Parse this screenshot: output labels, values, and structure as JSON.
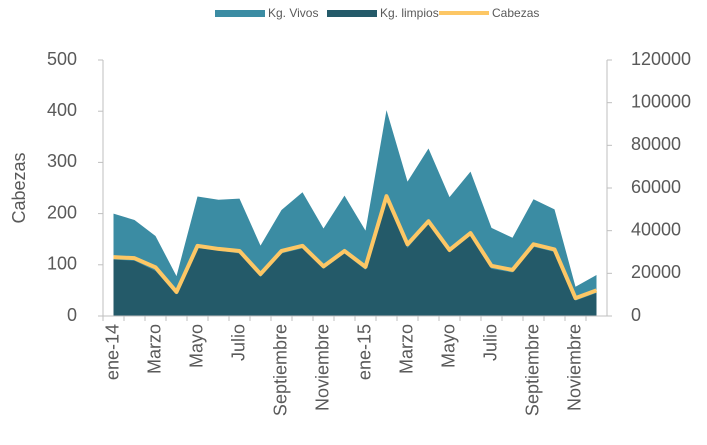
{
  "chart_data": {
    "type": "area-line",
    "categories": [
      "ene-14",
      null,
      "Marzo",
      null,
      "Mayo",
      null,
      "Julio",
      null,
      "Septiembre",
      null,
      "Noviembre",
      null,
      "ene-15",
      null,
      "Marzo",
      null,
      "Mayo",
      null,
      "Julio",
      null,
      "Septiembre",
      null,
      "Noviembre",
      null
    ],
    "series": [
      {
        "name": "Kg. Vivos",
        "type": "area",
        "axis": "y2",
        "color": "#3b8ca3",
        "values": [
          48000,
          45000,
          37500,
          18700,
          56000,
          54500,
          55000,
          33000,
          49700,
          58000,
          41000,
          56400,
          40000,
          96500,
          63000,
          78500,
          55700,
          67700,
          41300,
          36700,
          54700,
          50000,
          13700,
          19200
        ]
      },
      {
        "name": "Kg. limpios",
        "type": "area",
        "axis": "y2",
        "color": "#245a69",
        "values": [
          26400,
          25900,
          21100,
          10100,
          31900,
          30700,
          29300,
          18200,
          29300,
          31700,
          22100,
          29300,
          21600,
          54000,
          31900,
          43200,
          29800,
          37700,
          22100,
          20400,
          32400,
          30000,
          7200,
          10800
        ]
      },
      {
        "name": "Cabezas",
        "type": "line",
        "axis": "y",
        "color": "#fdc765",
        "values": [
          115,
          113,
          95,
          47,
          137,
          131,
          127,
          82,
          127,
          137,
          97,
          127,
          96,
          234,
          140,
          185,
          129,
          162,
          98,
          90,
          140,
          130,
          35,
          50
        ]
      }
    ],
    "y_label": "Cabezas",
    "ylim": [
      0,
      500
    ],
    "yticks": [
      0,
      100,
      200,
      300,
      400,
      500
    ],
    "y2lim": [
      0,
      120000
    ],
    "y2ticks": [
      0,
      20000,
      40000,
      60000,
      80000,
      100000,
      120000
    ],
    "legend": "top"
  }
}
